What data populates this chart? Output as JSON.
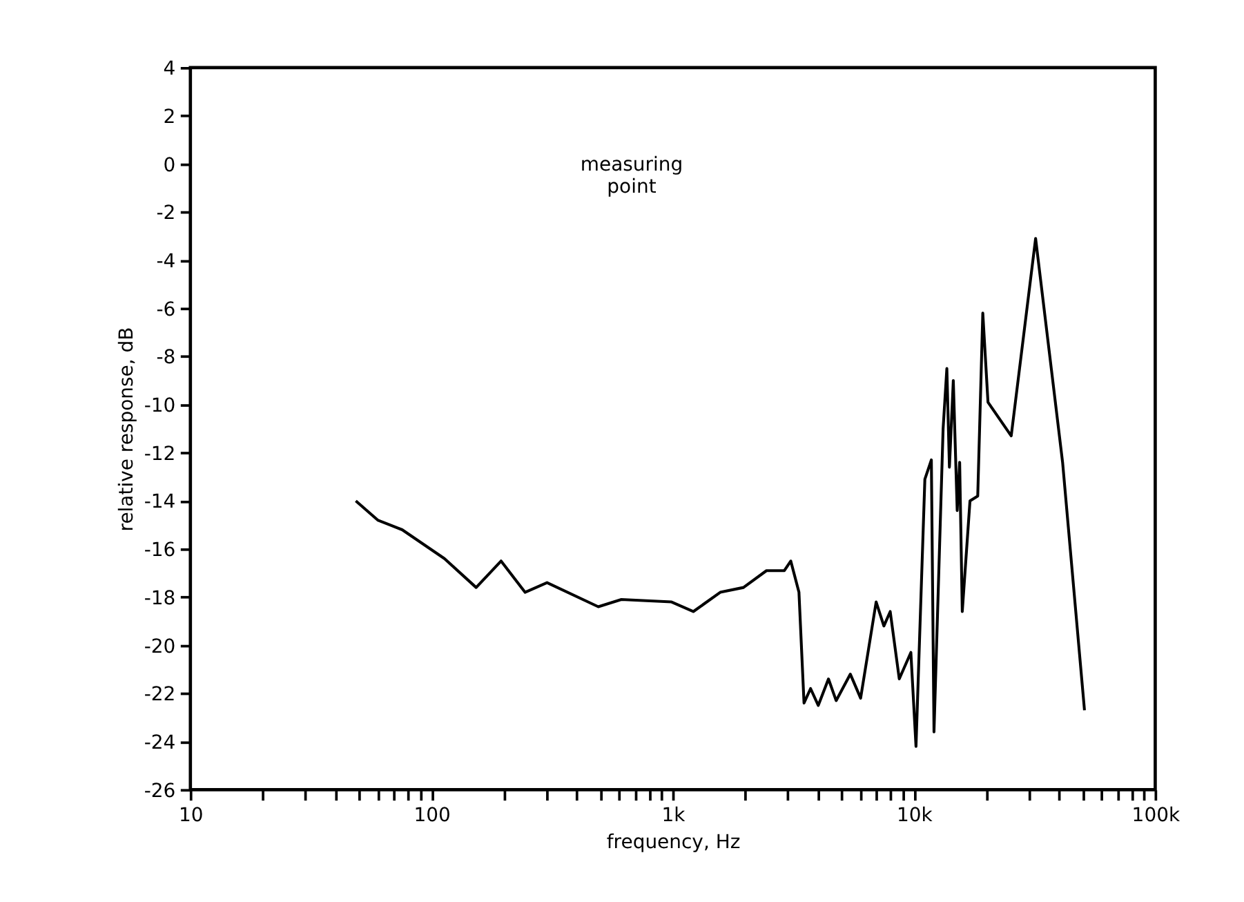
{
  "chart_data": {
    "type": "line",
    "xlabel": "frequency, Hz",
    "ylabel": "relative response, dB",
    "log": "x",
    "grid": false,
    "marker": "none",
    "line_style": "solid",
    "xlim": [
      10,
      100000
    ],
    "ylim": [
      -26,
      4
    ],
    "xticks": [
      10,
      {
        "value": 20,
        "label": null
      },
      {
        "value": 30,
        "label": null
      },
      {
        "value": 40,
        "label": null
      },
      {
        "value": 50,
        "label": null
      },
      {
        "value": 60,
        "label": null
      },
      {
        "value": 70,
        "label": null
      },
      {
        "value": 80,
        "label": null
      },
      {
        "value": 90,
        "label": null
      },
      100,
      {
        "value": 200,
        "label": null
      },
      {
        "value": 300,
        "label": null
      },
      {
        "value": 400,
        "label": null
      },
      {
        "value": 500,
        "label": null
      },
      {
        "value": 600,
        "label": null
      },
      {
        "value": 700,
        "label": null
      },
      {
        "value": 800,
        "label": null
      },
      {
        "value": 900,
        "label": null
      },
      {
        "value": 1000,
        "label": "1k"
      },
      {
        "value": 2000,
        "label": null
      },
      {
        "value": 3000,
        "label": null
      },
      {
        "value": 4000,
        "label": null
      },
      {
        "value": 5000,
        "label": null
      },
      {
        "value": 6000,
        "label": null
      },
      {
        "value": 7000,
        "label": null
      },
      {
        "value": 8000,
        "label": null
      },
      {
        "value": 9000,
        "label": null
      },
      {
        "value": 10000,
        "label": "10k"
      },
      {
        "value": 20000,
        "label": null
      },
      {
        "value": 30000,
        "label": null
      },
      {
        "value": 40000,
        "label": null
      },
      {
        "value": 50000,
        "label": null
      },
      {
        "value": 60000,
        "label": null
      },
      {
        "value": 70000,
        "label": null
      },
      {
        "value": 80000,
        "label": null
      },
      {
        "value": 90000,
        "label": null
      },
      {
        "value": 100000,
        "label": "100k"
      }
    ],
    "yticks": [
      -26,
      -24,
      -22,
      -20,
      -18,
      -16,
      -14,
      -12,
      -10,
      -8,
      -6,
      -4,
      -2,
      0,
      2,
      4
    ],
    "annotations": [
      "measuring\npoint"
    ],
    "series": [
      {
        "color": "#000000",
        "x": [
          48.5,
          59.8,
          75.5,
          113,
          153,
          194,
          244,
          301,
          491,
          612,
          988,
          1216,
          1573,
          1963,
          2445,
          2900,
          3083,
          3334,
          3499,
          3725,
          4009,
          4419,
          4755,
          5445,
          6006,
          6966,
          7499,
          7967,
          8686,
          9703,
          10190,
          11090,
          11800,
          12100,
          13200,
          13680,
          14020,
          14550,
          15100,
          15460,
          15850,
          17060,
          18370,
          19280,
          20260,
          25290,
          31920,
          41300,
          50900
        ],
        "values": [
          -14.0,
          -14.8,
          -15.2,
          -16.4,
          -17.6,
          -16.5,
          -17.8,
          -17.4,
          -18.4,
          -18.1,
          -18.2,
          -18.6,
          -17.8,
          -17.6,
          -16.9,
          -16.9,
          -16.5,
          -17.8,
          -22.4,
          -21.8,
          -22.5,
          -21.4,
          -22.3,
          -21.2,
          -22.2,
          -18.2,
          -19.2,
          -18.6,
          -21.4,
          -20.3,
          -24.2,
          -13.1,
          -12.3,
          -23.6,
          -11.0,
          -8.5,
          -12.6,
          -9.0,
          -14.4,
          -12.4,
          -18.6,
          -14.0,
          -13.8,
          -6.2,
          -9.9,
          -11.3,
          -3.1,
          -12.4,
          -22.7
        ]
      }
    ]
  }
}
